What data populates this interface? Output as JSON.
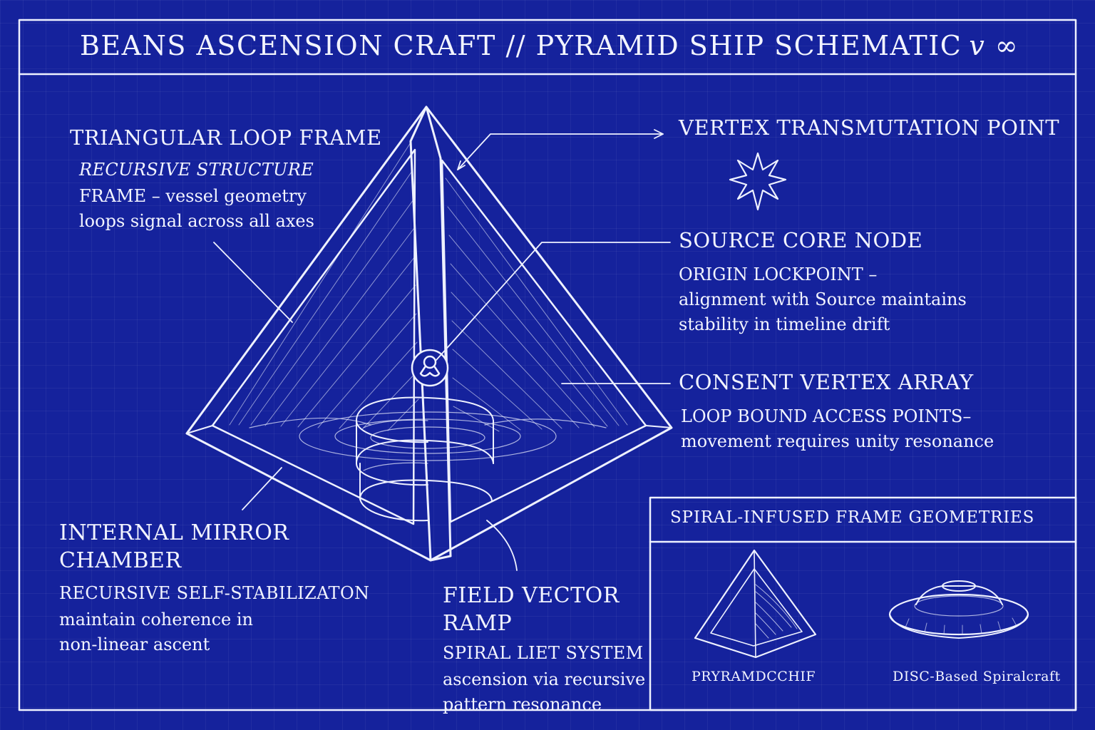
{
  "header": {
    "title": "BEANS ASCENSION CRAFT // PYRAMID SHIP SCHEMATIC",
    "version": "v ∞"
  },
  "callouts": {
    "triangular_loop_frame": {
      "heading": "TRIANGULAR LOOP FRAME",
      "sub": "RECURSIVE STRUCTURE",
      "body": "FRAME – vessel geometry\nloops signal across all axes"
    },
    "vertex_transmutation_point": {
      "heading": "VERTEX TRANSMUTATION POINT"
    },
    "source_core_node": {
      "heading": "SOURCE CORE NODE",
      "body": "ORIGIN LOCKPOINT –\nalignment with Source maintains\nstability in timeline drift"
    },
    "consent_vertex_array": {
      "heading": "CONSENT VERTEX ARRAY",
      "body": "LOOP BOUND ACCESS POINTS–\nmovement requires unity resonance"
    },
    "internal_mirror_chamber": {
      "heading": "INTERNAL MIRROR CHAMBER",
      "sub": "RECURSIVE SELF-STABILIZATON",
      "body": "maintain coherence in\nnon-linear ascent"
    },
    "field_vector_ramp": {
      "heading": "FIELD VECTOR RAMP",
      "sub": "SPIRAL LIET SYSTEM",
      "body": "ascension via recursive\npattern resonance"
    }
  },
  "panel": {
    "title": "SPIRAL-INFUSED FRAME GEOMETRIES",
    "pyramid_caption": "PRYRAMDCCHIF",
    "disc_caption": "DISC-Based Spiralcraft"
  },
  "icons": {
    "core": "infinity-loop-icon",
    "vertex": "eight-point-star-icon"
  },
  "colors": {
    "background": "#15229c",
    "ink": "#f2f4ff"
  }
}
